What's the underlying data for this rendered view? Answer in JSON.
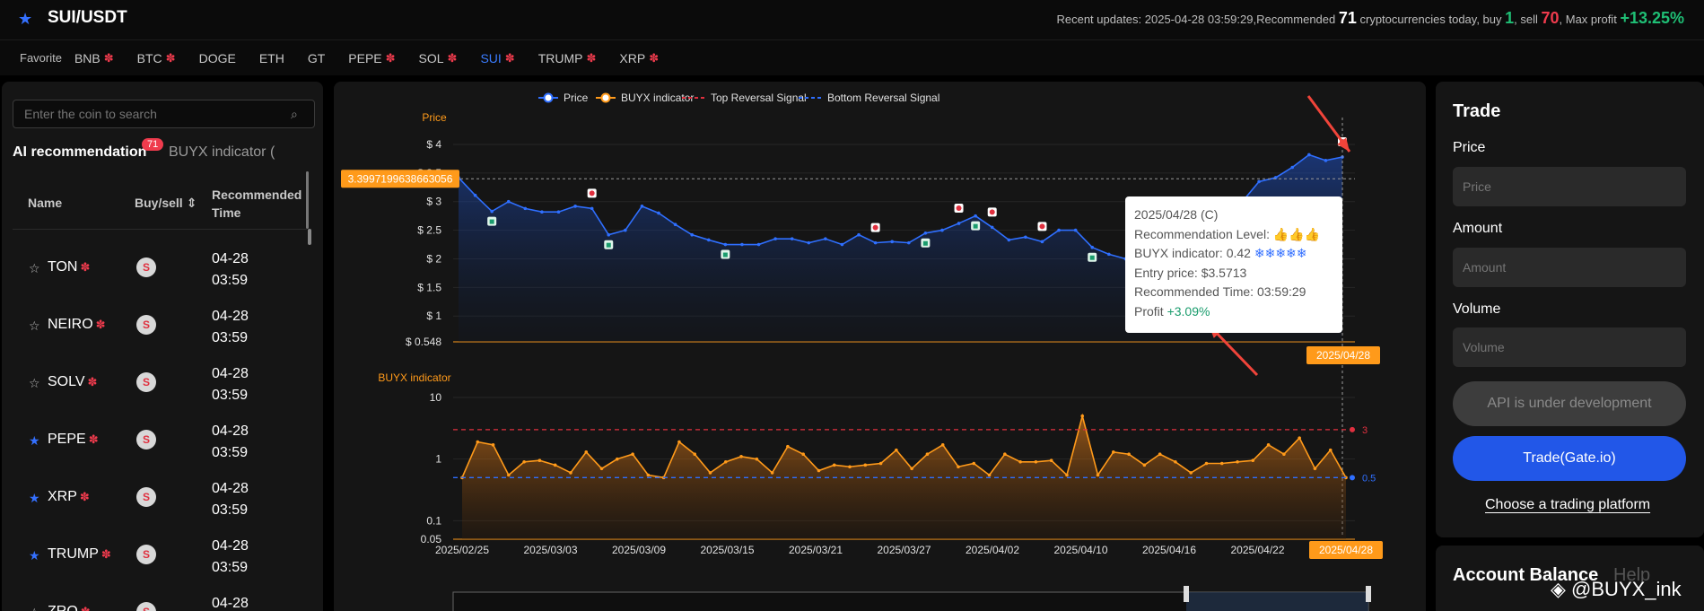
{
  "header": {
    "pair": "SUI/USDT",
    "updates_prefix": "Recent updates: 2025-04-28 03:59:29,Recommended ",
    "recommended_count": "71",
    "updates_mid": " cryptocurrencies today, buy ",
    "buy_count": "1",
    "updates_sell": ", sell ",
    "sell_count": "70",
    "updates_profit": ", Max profit ",
    "max_profit": "+13.25%"
  },
  "favorites": {
    "label": "Favorite",
    "items": [
      {
        "label": "BNB",
        "gear": true
      },
      {
        "label": "BTC",
        "gear": true
      },
      {
        "label": "DOGE",
        "gear": false
      },
      {
        "label": "ETH",
        "gear": false
      },
      {
        "label": "GT",
        "gear": false
      },
      {
        "label": "PEPE",
        "gear": true
      },
      {
        "label": "SOL",
        "gear": true
      },
      {
        "label": "SUI",
        "gear": true,
        "active": true
      },
      {
        "label": "TRUMP",
        "gear": true
      },
      {
        "label": "XRP",
        "gear": true
      }
    ]
  },
  "left": {
    "search_placeholder": "Enter the coin to search",
    "tab_ai": "AI recommendation",
    "tab_badge": "71",
    "tab_buyx": "BUYX indicator (",
    "col_name": "Name",
    "col_buysell": "Buy/sell ⇕",
    "col_time_1": "Recommended",
    "col_time_2": "Time",
    "rows": [
      {
        "name": "TON",
        "starred": false,
        "signal": "S",
        "date": "04-28",
        "time": "03:59"
      },
      {
        "name": "NEIRO",
        "starred": false,
        "signal": "S",
        "date": "04-28",
        "time": "03:59"
      },
      {
        "name": "SOLV",
        "starred": false,
        "signal": "S",
        "date": "04-28",
        "time": "03:59"
      },
      {
        "name": "PEPE",
        "starred": true,
        "signal": "S",
        "date": "04-28",
        "time": "03:59"
      },
      {
        "name": "XRP",
        "starred": true,
        "signal": "S",
        "date": "04-28",
        "time": "03:59"
      },
      {
        "name": "TRUMP",
        "starred": true,
        "signal": "S",
        "date": "04-28",
        "time": "03:59"
      },
      {
        "name": "ZRO",
        "starred": false,
        "signal": "S",
        "date": "04-28",
        "time": ""
      }
    ]
  },
  "chart_data": [
    {
      "type": "line",
      "title": "Price",
      "legend": [
        "Price",
        "BUYX indicator",
        "Top Reversal Signal",
        "Bottom Reversal Signal"
      ],
      "legend_colors": [
        "#2f6fff",
        "#ff9a1a",
        "#e0303f",
        "#2f6fff"
      ],
      "ylim": [
        0.548,
        4
      ],
      "y_ticks": [
        "$ 4",
        "$ 3.5",
        "$ 3",
        "$ 2.5",
        "$ 2",
        "$ 1.5",
        "$ 1",
        "$ 0.548"
      ],
      "y_tick_values": [
        4,
        3.5,
        3,
        2.5,
        2,
        1.5,
        1,
        0.548
      ],
      "crosshair_label": "3.3997199638663056",
      "crosshair_value": 3.3997199638663056,
      "x_badge": "2025/04/28",
      "values": [
        3.42,
        3.11,
        2.83,
        3.0,
        2.88,
        2.82,
        2.82,
        2.92,
        2.88,
        2.42,
        2.5,
        2.92,
        2.8,
        2.6,
        2.42,
        2.33,
        2.25,
        2.25,
        2.25,
        2.35,
        2.35,
        2.28,
        2.35,
        2.25,
        2.42,
        2.28,
        2.3,
        2.28,
        2.45,
        2.5,
        2.62,
        2.75,
        2.55,
        2.33,
        2.38,
        2.3,
        2.5,
        2.5,
        2.2,
        2.08,
        2.0,
        2.0,
        1.95,
        2.1,
        2.25,
        2.42,
        2.62,
        3.0,
        3.35,
        3.42,
        3.6,
        3.82,
        3.72,
        3.78
      ],
      "sell_signals_index": [
        8,
        25,
        30,
        32,
        35,
        53
      ],
      "buy_signals_index": [
        2,
        9,
        16,
        28,
        31,
        38,
        44
      ]
    },
    {
      "type": "line",
      "title": "BUYX indicator",
      "y_scale": "log",
      "ylim": [
        0.05,
        10
      ],
      "y_ticks": [
        "10",
        "1",
        "0.1",
        "0.05"
      ],
      "y_tick_values": [
        10,
        1,
        0.1,
        0.05
      ],
      "top_signal": 3,
      "bottom_signal": 0.5,
      "top_label": "3",
      "bottom_label": "0.5",
      "x_ticks": [
        "2025/02/25",
        "2025/03/03",
        "2025/03/09",
        "2025/03/15",
        "2025/03/21",
        "2025/03/27",
        "2025/04/02",
        "2025/04/10",
        "2025/04/16",
        "2025/04/22",
        "2025/04/28"
      ],
      "values": [
        0.5,
        1.9,
        1.7,
        0.55,
        0.9,
        0.95,
        0.8,
        0.6,
        1.3,
        0.7,
        1.0,
        1.2,
        0.55,
        0.5,
        1.9,
        1.2,
        0.6,
        0.9,
        1.1,
        1.0,
        0.6,
        1.6,
        1.2,
        0.65,
        0.8,
        0.75,
        0.8,
        0.85,
        1.4,
        0.7,
        1.2,
        1.7,
        0.75,
        0.85,
        0.55,
        1.2,
        0.9,
        0.9,
        0.95,
        0.55,
        5.0,
        0.55,
        1.3,
        1.2,
        0.8,
        1.2,
        0.9,
        0.6,
        0.85,
        0.85,
        0.9,
        0.95,
        1.7,
        1.2,
        2.2,
        0.7,
        1.4,
        0.5
      ]
    }
  ],
  "tooltip": {
    "date": "2025/04/28 (C)",
    "level_label": "Recommendation Level: ",
    "level_icons": "👍👍👍",
    "buyx_label": "BUYX indicator: 0.42 ",
    "buyx_icons": "❄❄❄❄❄",
    "entry": "Entry price: $3.5713",
    "time": "Recommended Time: 03:59:29",
    "profit_label": "Profit ",
    "profit_value": "+3.09%"
  },
  "trade": {
    "title": "Trade",
    "price_label": "Price",
    "price_placeholder": "Price",
    "amount_label": "Amount",
    "amount_placeholder": "Amount",
    "volume_label": "Volume",
    "volume_placeholder": "Volume",
    "api_button": "API is under development",
    "trade_button": "Trade(Gate.io)",
    "choose_link": "Choose a trading platform"
  },
  "balance": {
    "title": "Account Balance",
    "help": "Help",
    "watermark": "@BUYX_ink"
  }
}
